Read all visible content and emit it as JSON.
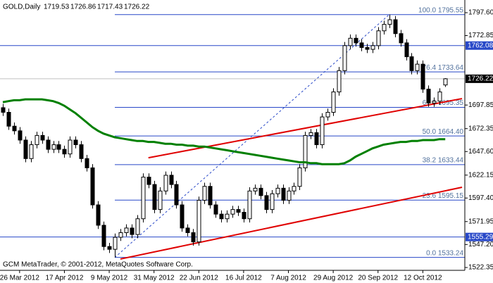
{
  "chart_data": {
    "type": "candlestick",
    "title": "GOLD,Daily",
    "footer": "GCM MetaTrader, © 2001-2012, MetaQuotes Software Corp.",
    "xlim": [
      -0.5,
      82.5
    ],
    "xticks": [
      {
        "value": 3,
        "label": "26 Mar 2012"
      },
      {
        "value": 11,
        "label": "17 Apr 2012"
      },
      {
        "value": 19,
        "label": "9 May 2012"
      },
      {
        "value": 27,
        "label": "31 May 2012"
      },
      {
        "value": 35,
        "label": "22 Jun 2012"
      },
      {
        "value": 43,
        "label": "16 Jul 2012"
      },
      {
        "value": 51,
        "label": "7 Aug 2012"
      },
      {
        "value": 59,
        "label": "29 Aug 2012"
      },
      {
        "value": 67,
        "label": "20 Sep 2012"
      },
      {
        "value": 75,
        "label": "12 Oct 2012"
      }
    ],
    "ylim": [
      1519.3,
      1811.3
    ],
    "yticks": [
      {
        "value": 1797.6,
        "label": "1797.60"
      },
      1772.85,
      1697.85,
      1672.35,
      {
        "value": 1647.6,
        "label": "1647.60"
      },
      1622.15,
      {
        "value": 1597.4,
        "label": "1597.40"
      },
      1571.95,
      {
        "value": 1547.2,
        "label": "1547.20"
      },
      1522.35
    ],
    "candles": {
      "up_color": "#ffffff",
      "down_color": "#000000",
      "edge_color": "#000000",
      "open": [
        1695,
        1690,
        1675,
        1670,
        1660,
        1640,
        1655,
        1665,
        1660,
        1650,
        1655,
        1650,
        1645,
        1660,
        1655,
        1640,
        1630,
        1590,
        1568,
        1545,
        1542,
        1555,
        1560,
        1565,
        1558,
        1575,
        1620,
        1612,
        1585,
        1605,
        1622,
        1612,
        1590,
        1565,
        1560,
        1550,
        1595,
        1610,
        1590,
        1580,
        1575,
        1580,
        1585,
        1582,
        1575,
        1605,
        1608,
        1600,
        1585,
        1602,
        1608,
        1595,
        1605,
        1610,
        1630,
        1665,
        1668,
        1655,
        1685,
        1690,
        1712,
        1735,
        1762,
        1770,
        1765,
        1760,
        1758,
        1762,
        1778,
        1785,
        1790,
        1775,
        1765,
        1750,
        1735,
        1742,
        1715,
        1700,
        1702,
        1719.53
      ],
      "high": [
        1699,
        1694,
        1679,
        1674,
        1664,
        1659,
        1669,
        1669,
        1664,
        1659,
        1659,
        1654,
        1664,
        1664,
        1659,
        1644,
        1634,
        1594,
        1572,
        1549,
        1559,
        1564,
        1569,
        1569,
        1579,
        1624,
        1624,
        1616,
        1609,
        1626,
        1626,
        1616,
        1594,
        1569,
        1564,
        1599,
        1614,
        1614,
        1594,
        1584,
        1584,
        1589,
        1589,
        1586,
        1609,
        1612,
        1612,
        1604,
        1606,
        1612,
        1612,
        1609,
        1614,
        1634,
        1669,
        1672,
        1672,
        1689,
        1694,
        1716,
        1739,
        1766,
        1774,
        1774,
        1769,
        1764,
        1766,
        1782,
        1789,
        1795.55,
        1794,
        1779,
        1769,
        1754,
        1746,
        1746,
        1719,
        1706,
        1716,
        1726.86
      ],
      "low": [
        1686,
        1671,
        1666,
        1656,
        1636,
        1636,
        1651,
        1656,
        1646,
        1646,
        1646,
        1641,
        1641,
        1651,
        1636,
        1626,
        1586,
        1564,
        1541,
        1538,
        1533.24,
        1551,
        1556,
        1554,
        1554,
        1571,
        1608,
        1581,
        1581,
        1601,
        1608,
        1586,
        1561,
        1556,
        1546,
        1546,
        1591,
        1586,
        1576,
        1571,
        1571,
        1576,
        1578,
        1571,
        1571,
        1601,
        1596,
        1581,
        1581,
        1598,
        1591,
        1591,
        1601,
        1606,
        1626,
        1661,
        1651,
        1651,
        1681,
        1686,
        1708,
        1731,
        1758,
        1761,
        1756,
        1754,
        1754,
        1758,
        1774,
        1781,
        1771,
        1761,
        1746,
        1731,
        1731,
        1711,
        1696,
        1696,
        1698,
        1717.43
      ],
      "close": [
        1690,
        1675,
        1670,
        1660,
        1640,
        1655,
        1665,
        1660,
        1650,
        1655,
        1650,
        1645,
        1660,
        1655,
        1640,
        1630,
        1590,
        1568,
        1545,
        1542,
        1555,
        1560,
        1565,
        1558,
        1575,
        1620,
        1612,
        1585,
        1605,
        1622,
        1612,
        1590,
        1565,
        1560,
        1550,
        1595,
        1610,
        1590,
        1580,
        1575,
        1580,
        1585,
        1582,
        1575,
        1605,
        1608,
        1600,
        1585,
        1602,
        1608,
        1595,
        1605,
        1610,
        1630,
        1665,
        1668,
        1655,
        1685,
        1690,
        1712,
        1735,
        1762,
        1770,
        1765,
        1760,
        1758,
        1762,
        1778,
        1785,
        1790,
        1775,
        1765,
        1750,
        1735,
        1742,
        1715,
        1700,
        1702,
        1712,
        1726.22
      ]
    },
    "moving_average": {
      "color": "#008000",
      "values": [
        1701,
        1702,
        1703,
        1703,
        1704,
        1704,
        1704,
        1704,
        1703,
        1702,
        1700,
        1697,
        1693,
        1689,
        1684,
        1679,
        1674,
        1670,
        1667,
        1665,
        1663,
        1662,
        1661,
        1660,
        1659,
        1659,
        1658,
        1658,
        1657,
        1656,
        1656,
        1655,
        1655,
        1654,
        1654,
        1653,
        1653,
        1652,
        1651,
        1650,
        1649,
        1648,
        1647,
        1646,
        1645,
        1644,
        1643,
        1642,
        1641,
        1640,
        1639,
        1638,
        1637,
        1636,
        1636,
        1635,
        1635,
        1634,
        1634,
        1634,
        1634,
        1635,
        1638,
        1642,
        1645,
        1648,
        1651,
        1653,
        1655,
        1656,
        1657,
        1658,
        1658,
        1659,
        1659,
        1660,
        1660,
        1660,
        1661,
        1661
      ]
    },
    "price_line_color": "#c0c0c0",
    "levels": {
      "color": "#2848c8",
      "values": [
        1762.08,
        1555.29
      ]
    },
    "fibonacci": {
      "color": "#2848c8",
      "text_color": "#50709c",
      "start": 20,
      "dash_color": "#2848c8",
      "levels": [
        {
          "value": 1795.55,
          "label": "100.0 1795.55"
        },
        {
          "value": 1733.64,
          "label": "76.4 1733.64"
        },
        {
          "value": 1695.35,
          "label": "61.8 1695.35"
        },
        {
          "value": 1664.4,
          "label": "50.0 1664.40"
        },
        {
          "value": 1633.44,
          "label": "38.2 1633.44"
        },
        {
          "value": 1595.15,
          "label": "23.6 1595.15"
        },
        {
          "value": 1533.24,
          "label": "0.0 1533.24"
        }
      ],
      "diagonal": [
        [
          20,
          1533.24
        ],
        [
          69,
          1795.55
        ]
      ]
    },
    "trend_lines": {
      "color": "#e00000",
      "lines": [
        [
          [
            26,
            1640.9
          ],
          [
            82,
            1704.8
          ]
        ],
        [
          [
            21,
            1531.5
          ],
          [
            82,
            1609.0
          ]
        ]
      ]
    }
  }
}
